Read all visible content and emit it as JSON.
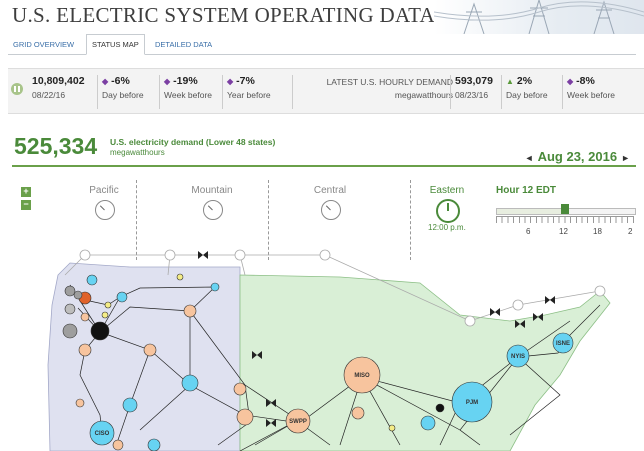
{
  "header": {
    "title": "U.S. ELECTRIC SYSTEM OPERATING DATA"
  },
  "tabs": [
    {
      "label": "GRID OVERVIEW",
      "active": false
    },
    {
      "label": "STATUS MAP",
      "active": true
    },
    {
      "label": "DETAILED DATA",
      "active": false
    }
  ],
  "stats_left": {
    "value": "10,809,402",
    "date": "08/22/16",
    "day_change": "-6%",
    "day_label": "Day before",
    "week_change": "-19%",
    "week_label": "Week before",
    "year_change": "-7%",
    "year_label": "Year before"
  },
  "stats_right": {
    "heading": "LATEST U.S. HOURLY DEMAND",
    "unit": "megawatthours",
    "value": "593,079",
    "date": "08/23/16",
    "day_change": "2%",
    "day_label": "Day before",
    "week_change": "-8%",
    "week_label": "Week before"
  },
  "demand": {
    "value": "525,334",
    "label": "U.S. electricity demand (Lower 48 states)",
    "unit": "megawatthours"
  },
  "date_nav": {
    "prev": "◄",
    "date": "Aug 23, 2016",
    "next": "►"
  },
  "zoom": {
    "in": "+",
    "out": "−"
  },
  "timezones": [
    "Pacific",
    "Mountain",
    "Central",
    "Eastern"
  ],
  "clock_time": "12:00 p.m.",
  "hour": {
    "label": "Hour 12 EDT",
    "value": 12,
    "ticks": [
      "6",
      "12",
      "18",
      "2"
    ]
  },
  "map": {
    "labels": {
      "ciso": "CISO",
      "swpp": "SWPP",
      "miso": "MISO",
      "pjm": "PJM",
      "nyis": "NYIS",
      "isne": "ISNE"
    },
    "colors": {
      "west_region": "#dfe1f0",
      "east_region": "#d9efd6",
      "node_light_blue": "#67d3f2",
      "node_peach": "#f7c49e",
      "node_gray": "#9e9e9e",
      "node_black": "#111111",
      "node_orange": "#e0622a",
      "node_yellow": "#f4ec86"
    }
  }
}
